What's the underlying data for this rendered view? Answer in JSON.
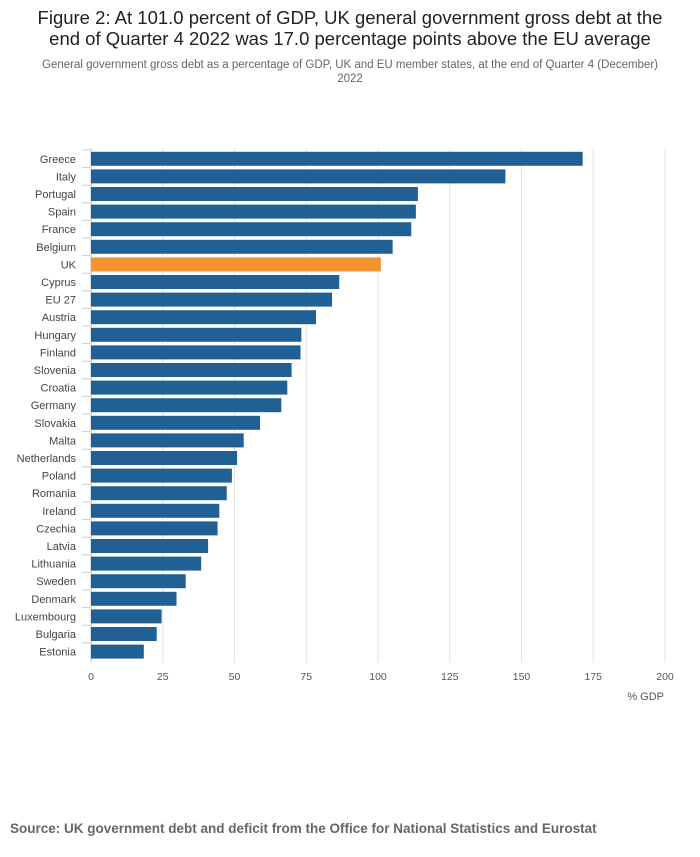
{
  "header": {
    "title": "Figure 2: At 101.0 percent of GDP, UK general government gross debt at the end of Quarter 4 2022 was 17.0 percentage points above the EU average",
    "subtitle": "General government gross debt as a percentage of GDP, UK and EU member states, at the end of Quarter 4 (December) 2022"
  },
  "chart_data": {
    "type": "bar",
    "orientation": "horizontal",
    "title": "Figure 2: At 101.0 percent of GDP, UK general government gross debt at the end of Quarter 4 2022 was 17.0 percentage points above the EU average",
    "subtitle": "General government gross debt as a percentage of GDP, UK and EU member states, at the end of Quarter 4 (December) 2022",
    "xlabel": "% GDP",
    "ylabel": "",
    "xlim": [
      0,
      200
    ],
    "xticks": [
      0,
      25,
      50,
      75,
      100,
      125,
      150,
      175,
      200
    ],
    "grid": true,
    "colors": {
      "default": "#206095",
      "highlight": "#f39431"
    },
    "highlight": [
      "UK"
    ],
    "categories": [
      "Greece",
      "Italy",
      "Portugal",
      "Spain",
      "France",
      "Belgium",
      "UK",
      "Cyprus",
      "EU 27",
      "Austria",
      "Hungary",
      "Finland",
      "Slovenia",
      "Croatia",
      "Germany",
      "Slovakia",
      "Malta",
      "Netherlands",
      "Poland",
      "Romania",
      "Ireland",
      "Czechia",
      "Latvia",
      "Lithuania",
      "Sweden",
      "Denmark",
      "Luxembourg",
      "Bulgaria",
      "Estonia"
    ],
    "values": [
      171.3,
      144.4,
      113.9,
      113.2,
      111.6,
      105.1,
      101.0,
      86.5,
      84.0,
      78.4,
      73.3,
      73.0,
      69.9,
      68.4,
      66.3,
      58.9,
      53.2,
      50.9,
      49.1,
      47.3,
      44.7,
      44.1,
      40.8,
      38.4,
      33.0,
      29.8,
      24.6,
      22.9,
      18.4
    ]
  },
  "footer": {
    "source": "Source: UK government debt and deficit from the Office for National Statistics and Eurostat"
  }
}
